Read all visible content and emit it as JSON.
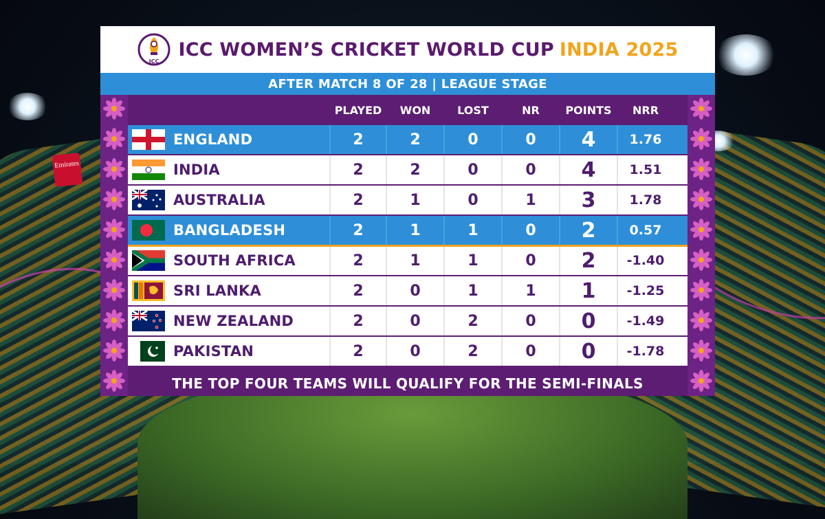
{
  "header": {
    "title": "ICC WOMEN’S CRICKET WORLD CUP",
    "title_accent": "INDIA 2025",
    "logo_text": "ICC"
  },
  "subheader": {
    "text": "AFTER MATCH 8 OF 28 | LEAGUE STAGE"
  },
  "columns": [
    "PLAYED",
    "WON",
    "LOST",
    "NR",
    "POINTS",
    "NRR"
  ],
  "teams": [
    {
      "name": "ENGLAND",
      "flag": "england-flag",
      "played": "2",
      "won": "2",
      "lost": "0",
      "nr": "0",
      "points": "4",
      "nrr": "1.76",
      "highlight": true
    },
    {
      "name": "INDIA",
      "flag": "india-flag",
      "played": "2",
      "won": "2",
      "lost": "0",
      "nr": "0",
      "points": "4",
      "nrr": "1.51",
      "highlight": false
    },
    {
      "name": "AUSTRALIA",
      "flag": "australia-flag",
      "played": "2",
      "won": "1",
      "lost": "0",
      "nr": "1",
      "points": "3",
      "nrr": "1.78",
      "highlight": false
    },
    {
      "name": "BANGLADESH",
      "flag": "bangladesh-flag",
      "played": "2",
      "won": "1",
      "lost": "1",
      "nr": "0",
      "points": "2",
      "nrr": "0.57",
      "highlight": true
    },
    {
      "name": "SOUTH AFRICA",
      "flag": "south-africa-flag",
      "played": "2",
      "won": "1",
      "lost": "1",
      "nr": "0",
      "points": "2",
      "nrr": "-1.40",
      "highlight": false
    },
    {
      "name": "SRI LANKA",
      "flag": "sri-lanka-flag",
      "played": "2",
      "won": "0",
      "lost": "1",
      "nr": "1",
      "points": "1",
      "nrr": "-1.25",
      "highlight": false
    },
    {
      "name": "NEW ZEALAND",
      "flag": "new-zealand-flag",
      "played": "2",
      "won": "0",
      "lost": "2",
      "nr": "0",
      "points": "0",
      "nrr": "-1.49",
      "highlight": false
    },
    {
      "name": "PAKISTAN",
      "flag": "pakistan-flag",
      "played": "2",
      "won": "0",
      "lost": "2",
      "nr": "0",
      "points": "0",
      "nrr": "-1.78",
      "highlight": false
    }
  ],
  "footer": {
    "text": "THE TOP FOUR TEAMS WILL QUALIFY FOR THE SEMI-FINALS"
  },
  "background": {
    "banner_text": "Emirates"
  },
  "colors": {
    "purple": "#5c1d72",
    "blue": "#2e8fd8",
    "gold": "#f2a41c",
    "text_purple": "#4e1d6d"
  }
}
